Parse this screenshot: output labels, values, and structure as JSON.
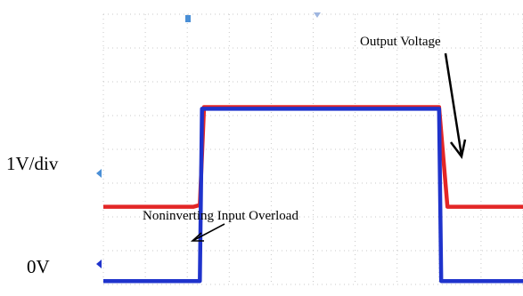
{
  "chart_data": {
    "type": "line",
    "title": "",
    "labels": {
      "output": "Output Voltage",
      "overload": "Noninverting Input Overload",
      "scale": "1V/div",
      "zero": "0V"
    },
    "x_unit": "div",
    "xlim": [
      0,
      10
    ],
    "ylim": [
      0,
      8
    ],
    "grid": true,
    "series": [
      {
        "color": "#e32626",
        "x": [
          0,
          2.15,
          2.3,
          2.4,
          8.0,
          8.05,
          8.2,
          10
        ],
        "y": [
          2.3,
          2.3,
          2.35,
          5.25,
          5.25,
          4.5,
          2.3,
          2.3
        ]
      },
      {
        "color": "#1f33cc",
        "x": [
          0,
          2.3,
          2.35,
          8.0,
          8.05,
          10
        ],
        "y": [
          0.1,
          0.1,
          5.2,
          5.2,
          0.1,
          0.1
        ]
      }
    ],
    "markers": {
      "trigger_color": "#4a8fd6",
      "ref_color": "#1f33cc"
    }
  }
}
